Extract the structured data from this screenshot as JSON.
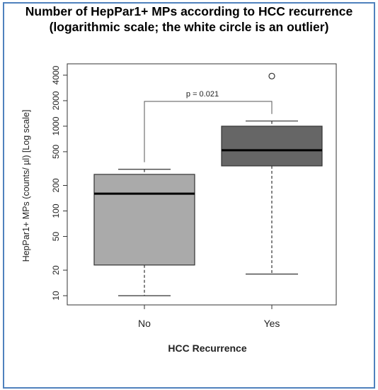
{
  "chart_data": {
    "type": "box",
    "title": "Number of HepPar1+ MPs according to HCC recurrence",
    "subtitle": "(logarithmic scale; the white circle is an outlier)",
    "xlabel": "HCC Recurrence",
    "ylabel": "HepPar1+ MPs (counts/ µl)  [Log scale]",
    "y_scale": "log",
    "ylim": [
      9,
      4600
    ],
    "y_ticks": [
      10,
      20,
      50,
      100,
      200,
      500,
      1000,
      2000,
      4000
    ],
    "categories": [
      "No",
      "Yes"
    ],
    "boxes": [
      {
        "category": "No",
        "whisker_low": 10,
        "q1": 23,
        "median": 160,
        "q3": 270,
        "whisker_high": 310,
        "outliers": [],
        "fill": "#aaaaaa"
      },
      {
        "category": "Yes",
        "whisker_low": 18,
        "q1": 340,
        "median": 520,
        "q3": 1000,
        "whisker_high": 1150,
        "outliers": [
          3900
        ],
        "fill": "#666666"
      }
    ],
    "annotation": {
      "text": "p = 0.021",
      "between": [
        "No",
        "Yes"
      ]
    },
    "grid": false,
    "legend": "none"
  }
}
